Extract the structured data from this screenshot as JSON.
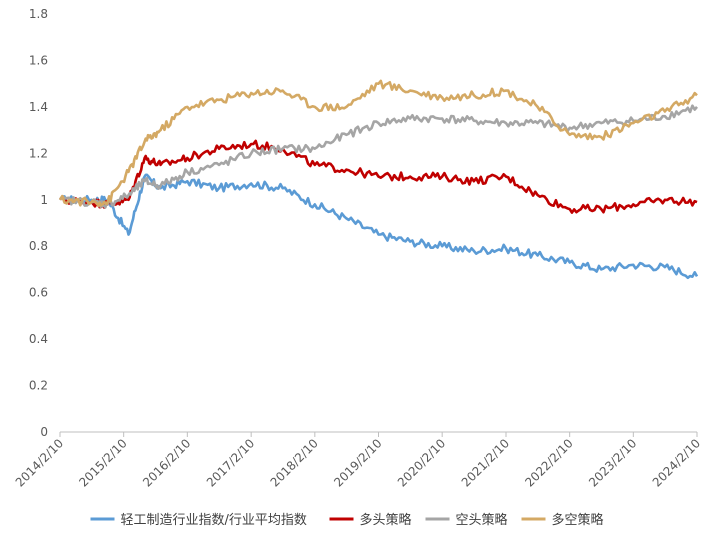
{
  "chart_data": {
    "type": "line",
    "title": "",
    "xlabel": "",
    "ylabel": "",
    "ylim": [
      0,
      1.8
    ],
    "yticks": [
      "0",
      "0.2",
      "0.4",
      "0.6",
      "0.8",
      "1",
      "1.2",
      "1.4",
      "1.6",
      "1.8"
    ],
    "xticks": [
      "2014/2/10",
      "2015/2/10",
      "2016/2/10",
      "2017/2/10",
      "2018/2/10",
      "2019/2/10",
      "2020/2/10",
      "2021/2/10",
      "2022/2/10",
      "2023/2/10",
      "2024/2/10"
    ],
    "grid": false,
    "legend_position": "bottom",
    "x": [
      "2014/2/10",
      "2014/8/10",
      "2014/11/10",
      "2015/3/10",
      "2015/6/10",
      "2015/9/10",
      "2016/2/10",
      "2016/8/10",
      "2017/2/10",
      "2017/8/10",
      "2018/2/10",
      "2018/8/10",
      "2019/2/10",
      "2019/8/10",
      "2020/2/10",
      "2020/8/10",
      "2021/2/10",
      "2021/8/10",
      "2022/2/10",
      "2022/8/10",
      "2023/2/10",
      "2023/8/10",
      "2024/2/10"
    ],
    "series": [
      {
        "name": "轻工制造行业指数/行业平均指数",
        "color": "#5B9BD5",
        "values": [
          1.0,
          1.0,
          1.0,
          0.85,
          1.1,
          1.05,
          1.08,
          1.05,
          1.07,
          1.05,
          0.98,
          0.92,
          0.85,
          0.82,
          0.8,
          0.78,
          0.79,
          0.76,
          0.73,
          0.7,
          0.72,
          0.71,
          0.67
        ]
      },
      {
        "name": "多头策略",
        "color": "#C00000",
        "values": [
          1.0,
          0.99,
          0.98,
          1.0,
          1.18,
          1.15,
          1.18,
          1.22,
          1.24,
          1.22,
          1.15,
          1.13,
          1.1,
          1.1,
          1.1,
          1.08,
          1.1,
          1.02,
          0.96,
          0.96,
          0.98,
          1.0,
          0.99
        ]
      },
      {
        "name": "空头策略",
        "color": "#A5A5A5",
        "values": [
          1.0,
          0.99,
          0.98,
          1.02,
          1.08,
          1.06,
          1.12,
          1.15,
          1.2,
          1.22,
          1.22,
          1.28,
          1.33,
          1.35,
          1.35,
          1.34,
          1.33,
          1.33,
          1.31,
          1.33,
          1.34,
          1.36,
          1.4
        ]
      },
      {
        "name": "多空策略",
        "color": "#D4A964",
        "values": [
          1.0,
          0.99,
          0.99,
          1.12,
          1.25,
          1.3,
          1.4,
          1.43,
          1.46,
          1.47,
          1.4,
          1.4,
          1.5,
          1.47,
          1.44,
          1.45,
          1.47,
          1.4,
          1.28,
          1.27,
          1.33,
          1.38,
          1.45
        ]
      }
    ]
  }
}
